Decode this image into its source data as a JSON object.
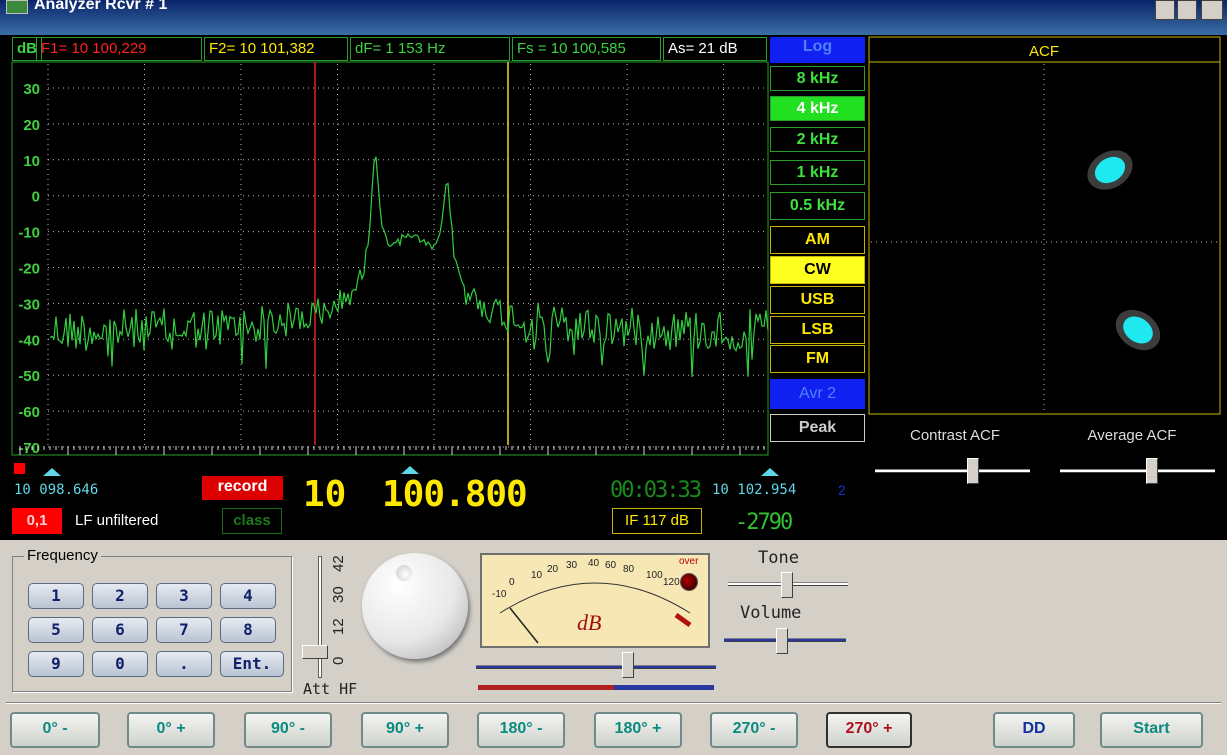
{
  "window": {
    "title": "Analyzer  Rcvr # 1"
  },
  "spectrum": {
    "unit": "dB",
    "f1": "F1= 10 100,229",
    "f2": "F2= 10 101,382",
    "df": "dF=  1 153 Hz",
    "fs": "Fs = 10 100,585",
    "as": "As= 21 dB",
    "y_labels": [
      "30",
      "20",
      "10",
      "0",
      "-10",
      "-20",
      "-30",
      "-40",
      "-50",
      "-60",
      "-70"
    ]
  },
  "log": "Log",
  "bandwidths": [
    "8 kHz",
    "4 kHz",
    "2 kHz",
    "1 kHz",
    "0.5 kHz"
  ],
  "modes": [
    "AM",
    "CW",
    "USB",
    "LSB",
    "FM"
  ],
  "avr": "Avr 2",
  "peak": "Peak",
  "acf": {
    "title": "ACF",
    "contrast": "Contrast ACF",
    "average": "Average ACF"
  },
  "status": {
    "left_freq": "10 098.646",
    "record": "record",
    "step": "0,1",
    "lf": "LF unfiltered",
    "class": "class",
    "mhz": "10",
    "khz": "100.800",
    "time": "00:03:33",
    "right_freq": "10 102.954",
    "right_idx": "2",
    "if": "IF 117 dB",
    "offset": "-2790"
  },
  "keypad": {
    "title": "Frequency",
    "keys": [
      "1",
      "2",
      "3",
      "4",
      "5",
      "6",
      "7",
      "8",
      "9",
      "0",
      ".",
      "Ent."
    ]
  },
  "att": {
    "labels": [
      "42",
      "30",
      "12",
      "0"
    ],
    "label": "Att HF"
  },
  "meter": {
    "scale": [
      "-10",
      "0",
      "10",
      "20",
      "30",
      "40",
      "60",
      "80",
      "100",
      "120"
    ],
    "over": "over",
    "unit": "dB"
  },
  "tone": "Tone",
  "volume": "Volume",
  "buttons": [
    "0° -",
    "0° +",
    "90° -",
    "90° +",
    "180° -",
    "180° +",
    "270° -",
    "270° +",
    "DD",
    "Start"
  ]
}
